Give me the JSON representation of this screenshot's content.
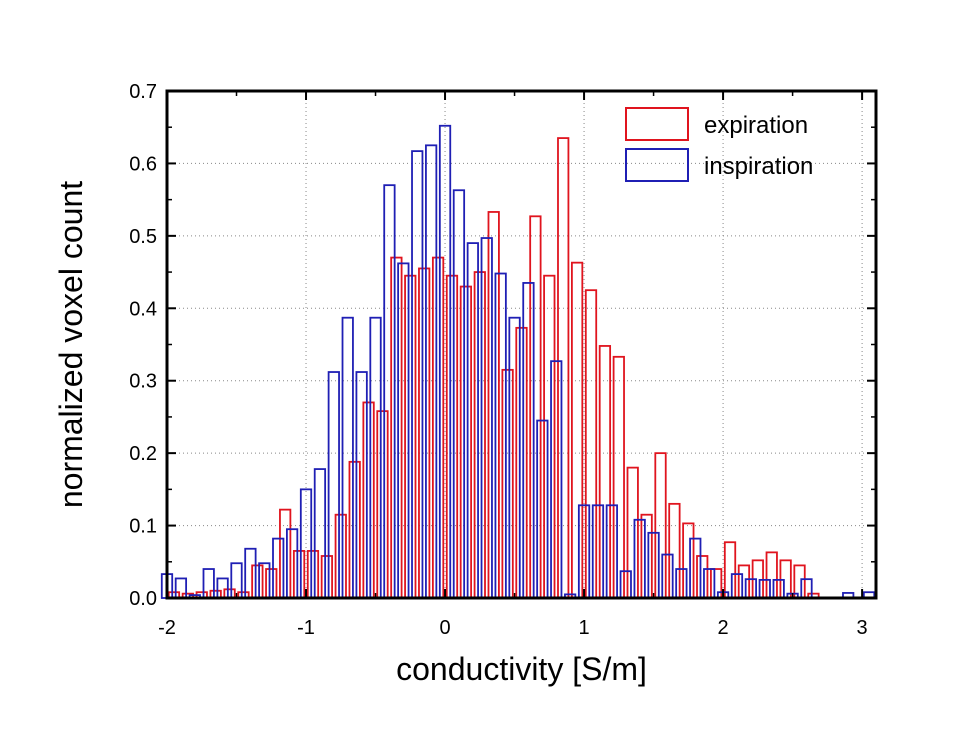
{
  "chart_data": {
    "type": "bar",
    "xlabel": "conductivity [S/m]",
    "ylabel": "normalized voxel count",
    "xlim": [
      -2,
      3.1
    ],
    "ylim": [
      0,
      0.7
    ],
    "x_ticks": [
      "-2",
      "-1",
      "0",
      "1",
      "2",
      "3"
    ],
    "y_ticks": [
      "0.0",
      "0.1",
      "0.2",
      "0.3",
      "0.4",
      "0.5",
      "0.6",
      "0.7"
    ],
    "grid": true,
    "legend_position": "top-right",
    "series": [
      {
        "name": "expiration",
        "color": "#e0141e",
        "x": [
          -1.95,
          -1.85,
          -1.75,
          -1.65,
          -1.55,
          -1.45,
          -1.35,
          -1.25,
          -1.15,
          -1.05,
          -0.95,
          -0.85,
          -0.75,
          -0.65,
          -0.55,
          -0.45,
          -0.35,
          -0.25,
          -0.15,
          -0.05,
          0.05,
          0.15,
          0.25,
          0.35,
          0.45,
          0.55,
          0.65,
          0.75,
          0.85,
          0.95,
          1.05,
          1.15,
          1.25,
          1.35,
          1.45,
          1.55,
          1.65,
          1.75,
          1.85,
          1.95,
          2.05,
          2.15,
          2.25,
          2.35,
          2.45,
          2.55,
          2.65
        ],
        "values": [
          0.008,
          0.006,
          0.008,
          0.01,
          0.012,
          0.008,
          0.045,
          0.04,
          0.122,
          0.065,
          0.065,
          0.058,
          0.115,
          0.188,
          0.27,
          0.258,
          0.47,
          0.445,
          0.455,
          0.47,
          0.445,
          0.43,
          0.45,
          0.533,
          0.315,
          0.373,
          0.527,
          0.445,
          0.635,
          0.463,
          0.425,
          0.348,
          0.333,
          0.18,
          0.115,
          0.2,
          0.13,
          0.103,
          0.058,
          0.04,
          0.077,
          0.045,
          0.052,
          0.063,
          0.052,
          0.045,
          0.006
        ]
      },
      {
        "name": "inspiration",
        "color": "#1f1fb4",
        "x": [
          -2.0,
          -1.9,
          -1.8,
          -1.7,
          -1.6,
          -1.5,
          -1.4,
          -1.3,
          -1.2,
          -1.1,
          -1.0,
          -0.9,
          -0.8,
          -0.7,
          -0.6,
          -0.5,
          -0.4,
          -0.3,
          -0.2,
          -0.1,
          0.0,
          0.1,
          0.2,
          0.3,
          0.4,
          0.5,
          0.6,
          0.7,
          0.8,
          0.9,
          1.0,
          1.1,
          1.2,
          1.3,
          1.4,
          1.5,
          1.6,
          1.7,
          1.8,
          1.9,
          2.0,
          2.1,
          2.2,
          2.3,
          2.4,
          2.5,
          2.6,
          2.9,
          3.05
        ],
        "values": [
          0.033,
          0.027,
          0.004,
          0.04,
          0.027,
          0.048,
          0.068,
          0.048,
          0.082,
          0.095,
          0.15,
          0.178,
          0.312,
          0.387,
          0.312,
          0.387,
          0.57,
          0.462,
          0.617,
          0.625,
          0.652,
          0.563,
          0.49,
          0.497,
          0.448,
          0.387,
          0.435,
          0.245,
          0.327,
          0.005,
          0.128,
          0.128,
          0.128,
          0.037,
          0.108,
          0.09,
          0.06,
          0.04,
          0.082,
          0.04,
          0.008,
          0.033,
          0.026,
          0.025,
          0.025,
          0.006,
          0.026,
          0.007,
          0.008
        ]
      }
    ]
  }
}
